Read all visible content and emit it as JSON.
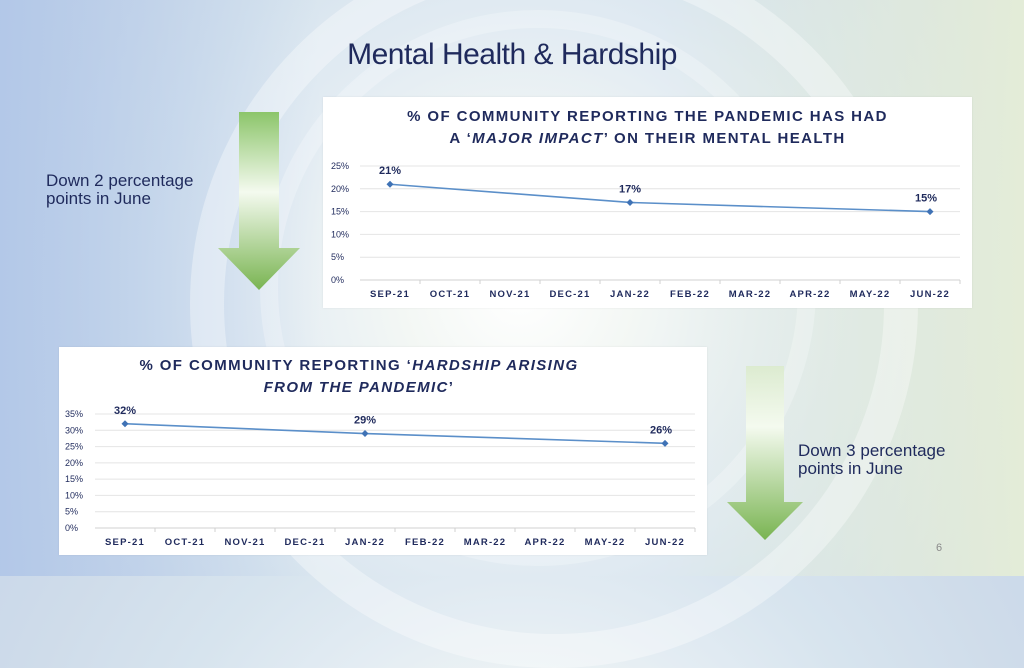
{
  "slide": {
    "title": "Mental Health & Hardship",
    "page_number": "6",
    "note_top": [
      "Down 2 percentage",
      "points in June"
    ],
    "note_bottom": [
      "Down 3 percentage",
      "points in June"
    ],
    "arrow_color": "#8cc56a"
  },
  "chart_data": [
    {
      "type": "line",
      "title_parts": {
        "line1": "% OF COMMUNITY REPORTING THE PANDEMIC HAS HAD",
        "line2_pre": "A ‘",
        "line2_em": "MAJOR IMPACT",
        "line2_post": "’ ON THEIR MENTAL HEALTH"
      },
      "categories": [
        "SEP-21",
        "OCT-21",
        "NOV-21",
        "DEC-21",
        "JAN-22",
        "FEB-22",
        "MAR-22",
        "APR-22",
        "MAY-22",
        "JUN-22"
      ],
      "points": [
        {
          "category": "SEP-21",
          "value": 21,
          "label": "21%"
        },
        {
          "category": "JAN-22",
          "value": 17,
          "label": "17%"
        },
        {
          "category": "JUN-22",
          "value": 15,
          "label": "15%"
        }
      ],
      "yticks": [
        "0%",
        "5%",
        "10%",
        "15%",
        "20%",
        "25%"
      ],
      "ylim": [
        0,
        25
      ],
      "line_color": "#5b8fc9",
      "grid": true
    },
    {
      "type": "line",
      "title_parts": {
        "line1_pre": "% OF COMMUNITY REPORTING ‘",
        "line1_em": "HARDSHIP ARISING",
        "line2_em": "FROM THE PANDEMIC",
        "line2_post": "’"
      },
      "categories": [
        "SEP-21",
        "OCT-21",
        "NOV-21",
        "DEC-21",
        "JAN-22",
        "FEB-22",
        "MAR-22",
        "APR-22",
        "MAY-22",
        "JUN-22"
      ],
      "points": [
        {
          "category": "SEP-21",
          "value": 32,
          "label": "32%"
        },
        {
          "category": "JAN-22",
          "value": 29,
          "label": "29%"
        },
        {
          "category": "JUN-22",
          "value": 26,
          "label": "26%"
        }
      ],
      "yticks": [
        "0%",
        "5%",
        "10%",
        "15%",
        "20%",
        "25%",
        "30%",
        "35%"
      ],
      "ylim": [
        0,
        35
      ],
      "line_color": "#5b8fc9",
      "grid": true
    }
  ]
}
